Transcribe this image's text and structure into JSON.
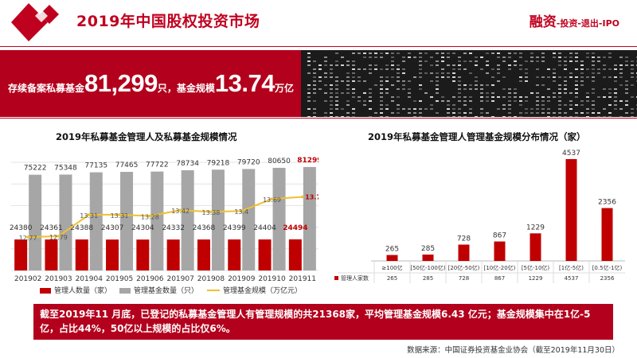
{
  "page": {
    "title": "2019年中国股权投资市场",
    "top_right_main": "融资",
    "top_right_sub": "-投资-退出-IPO"
  },
  "banner": {
    "label1": "存续备案私募基金",
    "number1": "81,299",
    "unit1": "只，基金规模",
    "number2": "13.74",
    "unit2": "万亿"
  },
  "colors": {
    "red": "#c00000",
    "gray": "#a6a6a6",
    "gold": "#f0c030"
  },
  "chart_data": [
    {
      "type": "bar",
      "title": "2019年私募基金管理人及私募基金规模情况",
      "categories": [
        "201902",
        "201903",
        "201904",
        "201905",
        "201906",
        "201907",
        "201908",
        "201909",
        "201910",
        "201911"
      ],
      "series": [
        {
          "name": "管理人数量（家）",
          "type": "bar",
          "values": [
            24380,
            24361,
            24388,
            24307,
            24304,
            24332,
            24368,
            24399,
            24404,
            24494
          ],
          "labels": [
            "24380",
            "24361",
            "24388",
            "24307",
            "24304",
            "24332",
            "24368",
            "24399",
            "24404",
            "24494"
          ]
        },
        {
          "name": "管理基金数量（只）",
          "type": "bar",
          "values": [
            75222,
            75348,
            77135,
            77465,
            77722,
            78734,
            79218,
            79720,
            80650,
            81299
          ],
          "labels": [
            "75222",
            "75348",
            "77135",
            "77465",
            "77722",
            "78734",
            "79218",
            "79720",
            "80650",
            "81299"
          ]
        },
        {
          "name": "管理基金规模（万亿元）",
          "type": "line",
          "values": [
            12.77,
            12.79,
            13.31,
            13.31,
            13.28,
            13.42,
            13.38,
            13.4,
            13.69,
            13.74
          ],
          "labels": [
            "12.77",
            "12.79",
            "13.31",
            "13.31",
            "13.28",
            "13.42",
            "13.38",
            "13.4",
            "13.69",
            "13.74"
          ]
        }
      ],
      "legend_position": "bottom",
      "grid": true
    },
    {
      "type": "bar",
      "title": "2019年私募基金管理人管理基金规模分布情况（家）",
      "categories": [
        "≥100亿",
        "[50亿-100亿)",
        "[20亿-50亿)",
        "[10亿-20亿)",
        "[5亿-10亿)",
        "[1亿-5亿)",
        "[0.5亿-1亿)"
      ],
      "series": [
        {
          "name": "管理人家数",
          "values": [
            265,
            285,
            728,
            867,
            1229,
            4537,
            2356
          ],
          "labels": [
            "265",
            "285",
            "728",
            "867",
            "1229",
            "4537",
            "2356"
          ]
        }
      ],
      "legend_position": "bottom-table",
      "grid": false
    }
  ],
  "summary": "截至2019年11 月底，已登记的私募基金管理人有管理规模的共21368家，平均管理基金规模6.43 亿元；基金规模集中在1亿-5亿，占比44%，50亿以上规模的占比仅6%。",
  "source": "数据来源：中国证券投资基金业协会（截至2019年11月30日）"
}
